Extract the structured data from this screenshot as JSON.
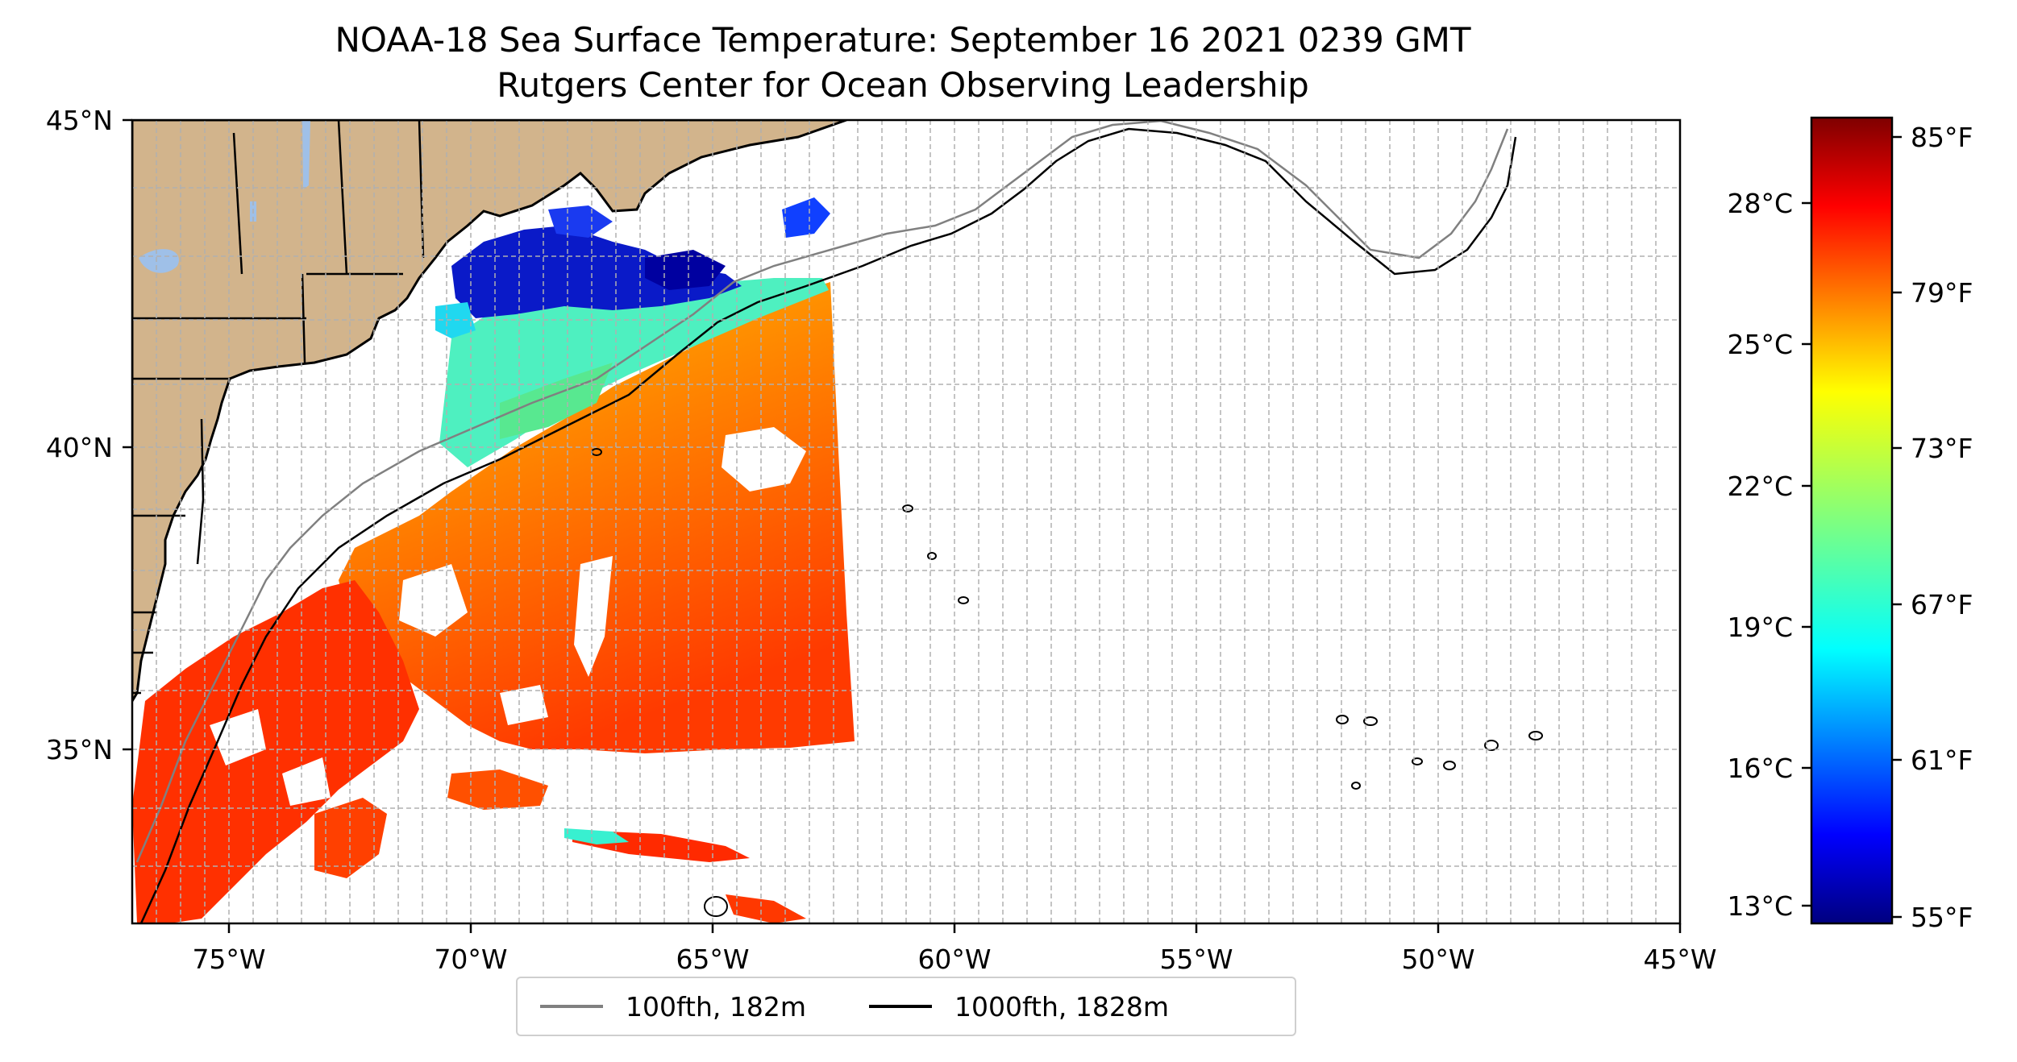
{
  "title": {
    "line1": "NOAA-18 Sea Surface Temperature: September 16 2021 0239 GMT",
    "line2": "Rutgers Center for Ocean Observing Leadership"
  },
  "axes": {
    "lon_ticks": [
      "75°W",
      "70°W",
      "65°W",
      "60°W",
      "55°W",
      "50°W",
      "45°W"
    ],
    "lat_ticks": [
      "45°N",
      "40°N",
      "35°N"
    ]
  },
  "colorbar": {
    "celsius_labels": [
      "28°C",
      "25°C",
      "22°C",
      "19°C",
      "16°C",
      "13°C"
    ],
    "fahrenheit_labels": [
      "85°F",
      "79°F",
      "73°F",
      "67°F",
      "61°F",
      "55°F"
    ],
    "colormap": "jet",
    "range_f": [
      55,
      86
    ]
  },
  "legend": [
    {
      "label": "100fth, 182m",
      "color": "#808080"
    },
    {
      "label": "1000fth, 1828m",
      "color": "#000000"
    }
  ],
  "colors": {
    "land": "#d2b48c",
    "lakes": "#9fc0e8",
    "sst_warm": "#ff4a00",
    "sst_mid": "#f6d800",
    "sst_cool": "#30e8c8",
    "sst_cold": "#0a1ac8"
  }
}
